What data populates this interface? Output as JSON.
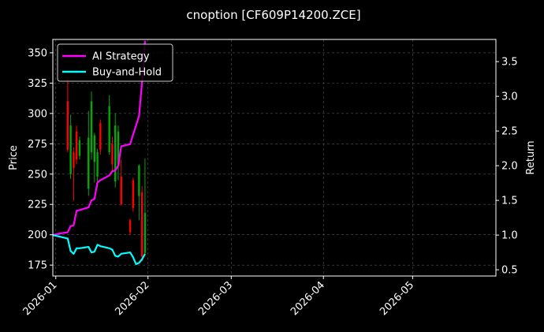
{
  "chart_data": {
    "type": "candlestick+line",
    "title": "cnoption [CF609P14200.ZCE]",
    "ylabel_left": "Price",
    "ylabel_right": "Return",
    "ylim_left": [
      166,
      361
    ],
    "ylim_right": [
      0.41,
      3.82
    ],
    "xlim": [
      "2025-12-31",
      "2026-05-29"
    ],
    "x_ticks": [
      "2026-01-01",
      "2026-02-01",
      "2026-03-01",
      "2026-04-01",
      "2026-05-01"
    ],
    "x_tick_labels": [
      "2026-01",
      "2026-02",
      "2026-03",
      "2026-04",
      "2026-05"
    ],
    "y_ticks_left": [
      175,
      200,
      225,
      250,
      275,
      300,
      325,
      350
    ],
    "y_ticks_right": [
      0.5,
      1.0,
      1.5,
      2.0,
      2.5,
      3.0,
      3.5
    ],
    "grid": true,
    "legend_position": "top-left",
    "colors": {
      "up": "#00aa00",
      "down": "#ff0000",
      "ai": "#ff00ff",
      "bh": "#00ffff",
      "bg": "#000000"
    },
    "candles": [
      {
        "date": "2026-01-05",
        "open": 310,
        "close": 270,
        "high": 330,
        "low": 268
      },
      {
        "date": "2026-01-06",
        "open": 250,
        "close": 290,
        "high": 299,
        "low": 246
      },
      {
        "date": "2026-01-07",
        "open": 268,
        "close": 255,
        "high": 272,
        "low": 228
      },
      {
        "date": "2026-01-08",
        "open": 285,
        "close": 262,
        "high": 290,
        "low": 258
      },
      {
        "date": "2026-01-09",
        "open": 265,
        "close": 278,
        "high": 281,
        "low": 262
      },
      {
        "date": "2026-01-12",
        "open": 238,
        "close": 280,
        "high": 302,
        "low": 232
      },
      {
        "date": "2026-01-13",
        "open": 268,
        "close": 310,
        "high": 318,
        "low": 262
      },
      {
        "date": "2026-01-14",
        "open": 260,
        "close": 282,
        "high": 284,
        "low": 243
      },
      {
        "date": "2026-01-15",
        "open": 248,
        "close": 268,
        "high": 271,
        "low": 239
      },
      {
        "date": "2026-01-16",
        "open": 292,
        "close": 270,
        "high": 295,
        "low": 266
      },
      {
        "date": "2026-01-19",
        "open": 268,
        "close": 306,
        "high": 315,
        "low": 266
      },
      {
        "date": "2026-01-20",
        "open": 275,
        "close": 258,
        "high": 281,
        "low": 251
      },
      {
        "date": "2026-01-21",
        "open": 244,
        "close": 290,
        "high": 300,
        "low": 239
      },
      {
        "date": "2026-01-22",
        "open": 258,
        "close": 285,
        "high": 290,
        "low": 245
      },
      {
        "date": "2026-01-23",
        "open": 248,
        "close": 225,
        "high": 262,
        "low": 224
      },
      {
        "date": "2026-01-26",
        "open": 212,
        "close": 202,
        "high": 213,
        "low": 200
      },
      {
        "date": "2026-01-27",
        "open": 245,
        "close": 222,
        "high": 247,
        "low": 219
      },
      {
        "date": "2026-01-29",
        "open": 232,
        "close": 257,
        "high": 258,
        "low": 212
      },
      {
        "date": "2026-01-30",
        "open": 235,
        "close": 182,
        "high": 240,
        "low": 178
      },
      {
        "date": "2026-01-31",
        "open": 185,
        "close": 218,
        "high": 263,
        "low": 183
      }
    ],
    "series": [
      {
        "name": "AI Strategy",
        "color": "#ff00ff",
        "x": [
          "2025-12-31",
          "2026-01-02",
          "2026-01-05",
          "2026-01-06",
          "2026-01-07",
          "2026-01-08",
          "2026-01-09",
          "2026-01-12",
          "2026-01-13",
          "2026-01-14",
          "2026-01-15",
          "2026-01-16",
          "2026-01-19",
          "2026-01-20",
          "2026-01-21",
          "2026-01-22",
          "2026-01-23",
          "2026-01-26",
          "2026-01-27",
          "2026-01-28",
          "2026-01-29",
          "2026-01-30",
          "2026-01-31"
        ],
        "values": [
          1.0,
          1.02,
          1.04,
          1.13,
          1.14,
          1.35,
          1.36,
          1.4,
          1.5,
          1.52,
          1.76,
          1.79,
          1.86,
          1.92,
          1.93,
          2.0,
          2.28,
          2.31,
          2.45,
          2.58,
          2.72,
          3.2,
          3.8
        ]
      },
      {
        "name": "Buy-and-Hold",
        "color": "#00ffff",
        "x": [
          "2025-12-31",
          "2026-01-02",
          "2026-01-05",
          "2026-01-06",
          "2026-01-07",
          "2026-01-08",
          "2026-01-09",
          "2026-01-12",
          "2026-01-13",
          "2026-01-14",
          "2026-01-15",
          "2026-01-16",
          "2026-01-19",
          "2026-01-20",
          "2026-01-21",
          "2026-01-22",
          "2026-01-23",
          "2026-01-26",
          "2026-01-27",
          "2026-01-28",
          "2026-01-29",
          "2026-01-30",
          "2026-01-31"
        ],
        "values": [
          1.0,
          0.98,
          0.95,
          0.77,
          0.73,
          0.81,
          0.81,
          0.83,
          0.75,
          0.76,
          0.86,
          0.84,
          0.81,
          0.79,
          0.7,
          0.69,
          0.73,
          0.75,
          0.68,
          0.58,
          0.6,
          0.65,
          0.73
        ]
      }
    ]
  }
}
